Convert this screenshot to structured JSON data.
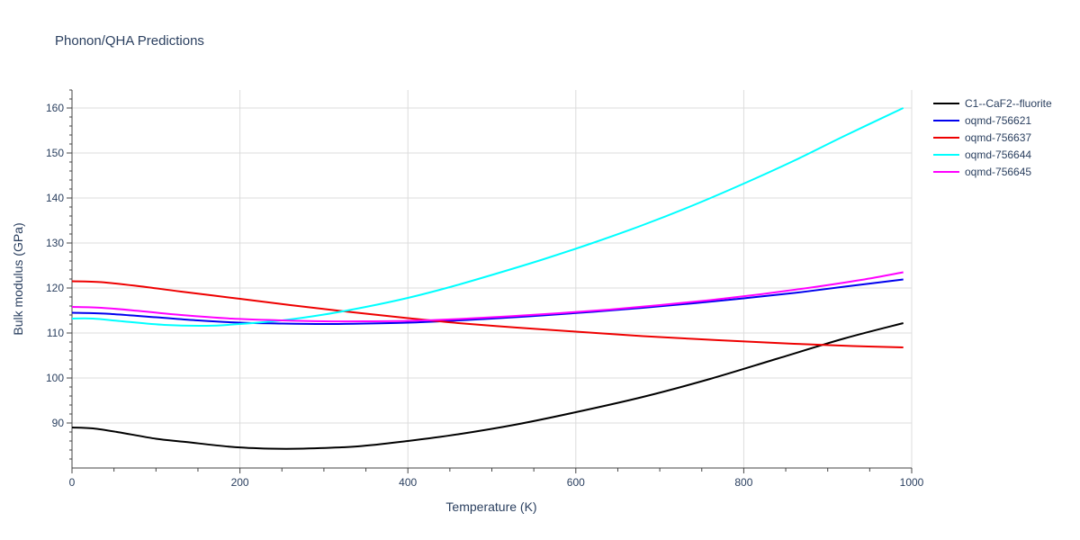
{
  "chart_data": {
    "type": "line",
    "title": "Phonon/QHA Predictions",
    "xlabel": "Temperature (K)",
    "ylabel": "Bulk modulus (GPa)",
    "xlim": [
      0,
      1000
    ],
    "ylim": [
      80,
      164
    ],
    "xticks": [
      0,
      200,
      400,
      600,
      800,
      1000
    ],
    "yticks": [
      90,
      100,
      110,
      120,
      130,
      140,
      150,
      160
    ],
    "grid": true,
    "legend_position": "top-right",
    "series": [
      {
        "name": "C1--CaF2--fluorite",
        "color": "#000000",
        "x": [
          0,
          25,
          60,
          100,
          135,
          190,
          235,
          275,
          340,
          400,
          460,
          530,
          600,
          680,
          760,
          840,
          920,
          990
        ],
        "y": [
          89,
          88.8,
          87.8,
          86.5,
          85.8,
          84.7,
          84.3,
          84.3,
          84.8,
          86,
          87.5,
          89.7,
          92.4,
          95.8,
          99.8,
          104.3,
          108.8,
          112.2
        ]
      },
      {
        "name": "oqmd-756621",
        "color": "#0000ee",
        "x": [
          0,
          40,
          100,
          150,
          200,
          250,
          300,
          350,
          400,
          450,
          500,
          560,
          620,
          680,
          740,
          800,
          860,
          920,
          990
        ],
        "y": [
          114.5,
          114.3,
          113.5,
          112.8,
          112.3,
          112.1,
          112,
          112.1,
          112.3,
          112.7,
          113.2,
          113.9,
          114.7,
          115.6,
          116.6,
          117.7,
          118.9,
          120.3,
          121.9
        ]
      },
      {
        "name": "oqmd-756637",
        "color": "#ee0000",
        "x": [
          0,
          35,
          80,
          130,
          200,
          260,
          330,
          400,
          460,
          530,
          600,
          680,
          770,
          860,
          930,
          990
        ],
        "y": [
          121.5,
          121.3,
          120.4,
          119.2,
          117.6,
          116.2,
          114.7,
          113.3,
          112.2,
          111.2,
          110.3,
          109.3,
          108.4,
          107.6,
          107.1,
          106.8
        ]
      },
      {
        "name": "oqmd-756644",
        "color": "#00ffff",
        "x": [
          0,
          25,
          60,
          110,
          160,
          200,
          250,
          300,
          350,
          400,
          450,
          500,
          560,
          620,
          680,
          740,
          800,
          860,
          920,
          990
        ],
        "y": [
          113.2,
          113.2,
          112.6,
          111.8,
          111.6,
          112,
          112.8,
          114.1,
          115.8,
          117.8,
          120.2,
          122.9,
          126.3,
          130,
          134,
          138.4,
          143.2,
          148.3,
          153.8,
          160
        ]
      },
      {
        "name": "oqmd-756645",
        "color": "#ff00ff",
        "x": [
          0,
          35,
          80,
          130,
          190,
          250,
          300,
          350,
          400,
          460,
          520,
          580,
          640,
          700,
          760,
          820,
          880,
          940,
          990
        ],
        "y": [
          115.8,
          115.6,
          114.9,
          114,
          113.2,
          112.8,
          112.6,
          112.6,
          112.7,
          113.1,
          113.7,
          114.4,
          115.2,
          116.2,
          117.3,
          118.6,
          120.1,
          121.8,
          123.5
        ]
      }
    ]
  }
}
